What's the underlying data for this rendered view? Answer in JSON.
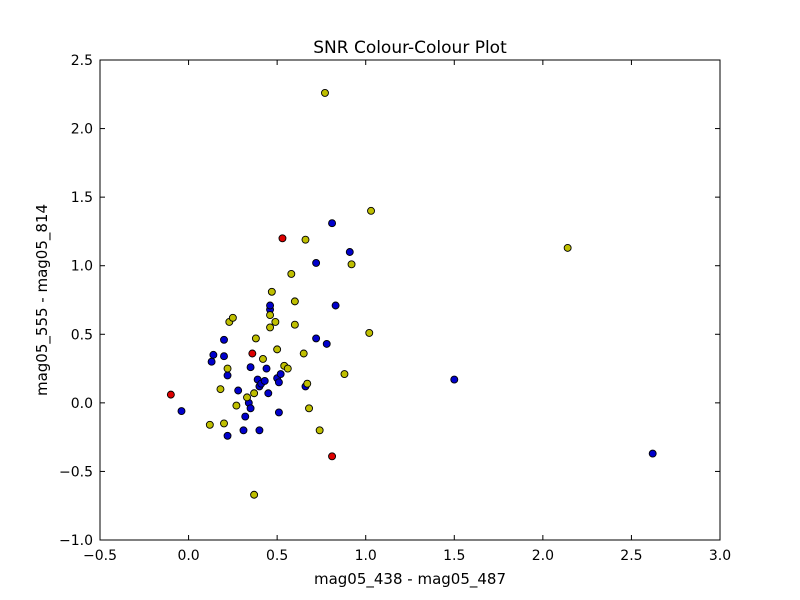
{
  "chart_data": {
    "type": "scatter",
    "title": "SNR Colour-Colour Plot",
    "xlabel": "mag05_438 - mag05_487",
    "ylabel": "mag05_555 - mag05_814",
    "xlim": [
      -0.5,
      3.0
    ],
    "ylim": [
      -1.0,
      2.5
    ],
    "xticks": [
      "−0.5",
      "0.0",
      "0.5",
      "1.0",
      "1.5",
      "2.0",
      "2.5",
      "3.0"
    ],
    "yticks": [
      "−1.0",
      "−0.5",
      "0.0",
      "0.5",
      "1.0",
      "1.5",
      "2.0",
      "2.5"
    ],
    "grid": false,
    "series": [
      {
        "color": "#0000cc",
        "points": [
          [
            -0.04,
            -0.06
          ],
          [
            0.13,
            0.3
          ],
          [
            0.14,
            0.35
          ],
          [
            0.2,
            0.34
          ],
          [
            0.2,
            0.46
          ],
          [
            0.22,
            -0.24
          ],
          [
            0.22,
            0.2
          ],
          [
            0.28,
            0.09
          ],
          [
            0.31,
            -0.2
          ],
          [
            0.32,
            -0.1
          ],
          [
            0.34,
            0.0
          ],
          [
            0.35,
            -0.04
          ],
          [
            0.35,
            0.26
          ],
          [
            0.39,
            0.17
          ],
          [
            0.4,
            -0.2
          ],
          [
            0.4,
            0.12
          ],
          [
            0.41,
            0.14
          ],
          [
            0.43,
            0.16
          ],
          [
            0.44,
            0.25
          ],
          [
            0.45,
            0.07
          ],
          [
            0.46,
            0.68
          ],
          [
            0.46,
            0.71
          ],
          [
            0.5,
            0.18
          ],
          [
            0.51,
            0.15
          ],
          [
            0.51,
            -0.07
          ],
          [
            0.52,
            0.21
          ],
          [
            0.66,
            0.12
          ],
          [
            0.72,
            0.47
          ],
          [
            0.72,
            1.02
          ],
          [
            0.78,
            0.43
          ],
          [
            0.81,
            1.31
          ],
          [
            0.83,
            0.71
          ],
          [
            0.91,
            1.1
          ],
          [
            1.5,
            0.17
          ],
          [
            2.62,
            -0.37
          ]
        ]
      },
      {
        "color": "#bfbf00",
        "points": [
          [
            0.12,
            -0.16
          ],
          [
            0.18,
            0.1
          ],
          [
            0.2,
            -0.15
          ],
          [
            0.22,
            0.25
          ],
          [
            0.23,
            0.59
          ],
          [
            0.25,
            0.62
          ],
          [
            0.27,
            -0.02
          ],
          [
            0.33,
            0.04
          ],
          [
            0.37,
            -0.67
          ],
          [
            0.37,
            0.07
          ],
          [
            0.38,
            0.47
          ],
          [
            0.42,
            0.32
          ],
          [
            0.46,
            0.55
          ],
          [
            0.46,
            0.64
          ],
          [
            0.47,
            0.81
          ],
          [
            0.49,
            0.59
          ],
          [
            0.5,
            0.39
          ],
          [
            0.54,
            0.27
          ],
          [
            0.56,
            0.25
          ],
          [
            0.58,
            0.94
          ],
          [
            0.6,
            0.57
          ],
          [
            0.6,
            0.74
          ],
          [
            0.65,
            0.36
          ],
          [
            0.66,
            1.19
          ],
          [
            0.67,
            0.14
          ],
          [
            0.68,
            -0.04
          ],
          [
            0.74,
            -0.2
          ],
          [
            0.77,
            2.26
          ],
          [
            0.88,
            0.21
          ],
          [
            0.92,
            1.01
          ],
          [
            1.02,
            0.51
          ],
          [
            1.03,
            1.4
          ],
          [
            2.14,
            1.13
          ]
        ]
      },
      {
        "color": "#dd0000",
        "points": [
          [
            -0.1,
            0.06
          ],
          [
            0.36,
            0.36
          ],
          [
            0.53,
            1.2
          ],
          [
            0.81,
            -0.39
          ]
        ]
      }
    ]
  }
}
